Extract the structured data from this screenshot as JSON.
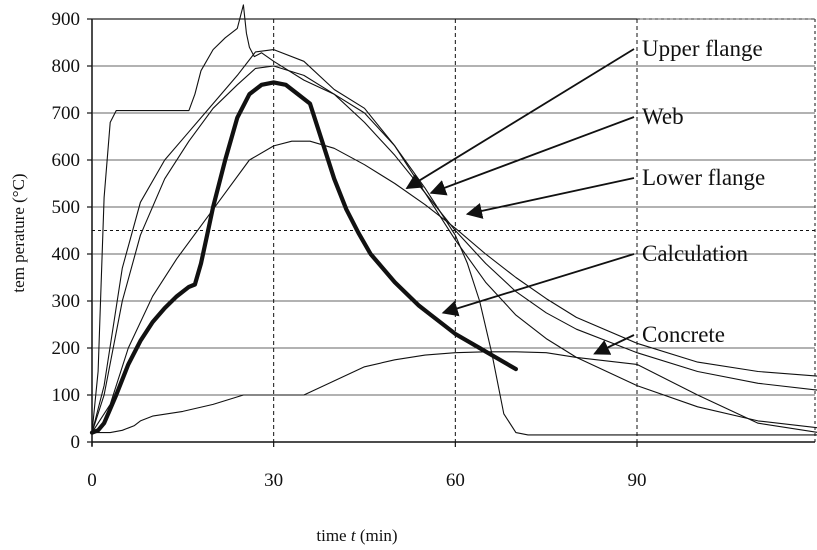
{
  "chart_data": {
    "type": "line",
    "xlabel_prefix": "time ",
    "xlabel_var": "t",
    "xlabel_suffix": " (min)",
    "ylabel": "tem perature (°C)",
    "xlim": [
      0,
      120
    ],
    "ylim": [
      0,
      900
    ],
    "xticks": [
      0,
      30,
      60,
      90
    ],
    "yticks": [
      0,
      100,
      200,
      300,
      400,
      500,
      600,
      700,
      800,
      900
    ],
    "grid": {
      "horizontal": true,
      "vertical_dashed_at": [
        30,
        60,
        90
      ]
    },
    "series": [
      {
        "name": "",
        "style": "thin",
        "x": [
          0,
          1,
          2,
          3,
          4,
          5,
          8,
          12,
          16,
          17,
          18,
          20,
          22,
          24,
          25,
          25.5,
          26,
          26.8,
          28,
          30,
          35,
          40,
          45,
          50,
          55,
          60,
          62,
          64,
          66,
          68,
          70,
          72,
          120
        ],
        "y": [
          20,
          150,
          520,
          680,
          705,
          705,
          705,
          705,
          705,
          740,
          790,
          835,
          860,
          880,
          930,
          870,
          840,
          820,
          828,
          810,
          770,
          740,
          700,
          630,
          540,
          440,
          380,
          300,
          190,
          60,
          20,
          15,
          15
        ]
      },
      {
        "name": "Upper flange",
        "style": "thin",
        "x": [
          0,
          2,
          5,
          8,
          12,
          16,
          20,
          24,
          27,
          30,
          35,
          40,
          45,
          50,
          55,
          60,
          65,
          70,
          75,
          80,
          90,
          100,
          110,
          120
        ],
        "y": [
          20,
          120,
          370,
          510,
          600,
          660,
          720,
          780,
          830,
          835,
          810,
          750,
          710,
          630,
          530,
          430,
          340,
          270,
          220,
          180,
          120,
          75,
          45,
          30
        ]
      },
      {
        "name": "Web",
        "style": "thin",
        "x": [
          0,
          2,
          5,
          8,
          12,
          16,
          20,
          24,
          27,
          30,
          35,
          40,
          45,
          50,
          55,
          60,
          65,
          70,
          75,
          80,
          90,
          100,
          110,
          120
        ],
        "y": [
          20,
          100,
          300,
          440,
          560,
          640,
          710,
          760,
          795,
          800,
          780,
          740,
          680,
          610,
          530,
          450,
          380,
          320,
          275,
          240,
          190,
          150,
          125,
          110
        ]
      },
      {
        "name": "Lower flange",
        "style": "thin",
        "x": [
          0,
          3,
          6,
          10,
          14,
          18,
          22,
          26,
          30,
          33,
          36,
          40,
          45,
          50,
          55,
          60,
          65,
          70,
          75,
          80,
          90,
          100,
          110,
          120
        ],
        "y": [
          20,
          80,
          200,
          310,
          390,
          460,
          530,
          600,
          630,
          640,
          640,
          625,
          590,
          550,
          505,
          455,
          400,
          350,
          305,
          265,
          210,
          170,
          150,
          140
        ]
      },
      {
        "name": "Calculation",
        "style": "thick",
        "x": [
          0,
          1,
          2,
          3,
          4,
          6,
          8,
          10,
          12,
          14,
          16,
          17,
          18,
          19,
          20,
          22,
          24,
          26,
          28,
          30,
          32,
          34,
          36,
          38,
          40,
          42,
          44,
          46,
          48,
          50,
          52,
          54,
          56,
          58,
          60,
          62,
          64,
          66,
          68,
          70
        ],
        "y": [
          20,
          25,
          40,
          70,
          100,
          165,
          215,
          255,
          285,
          310,
          330,
          335,
          380,
          440,
          500,
          600,
          690,
          740,
          760,
          765,
          760,
          740,
          720,
          640,
          560,
          495,
          445,
          400,
          370,
          340,
          315,
          290,
          270,
          250,
          230,
          215,
          200,
          185,
          170,
          155
        ]
      },
      {
        "name": "Concrete",
        "style": "thin",
        "x": [
          0,
          3,
          5,
          7,
          8,
          10,
          15,
          20,
          25,
          30,
          35,
          40,
          45,
          50,
          55,
          60,
          65,
          70,
          75,
          80,
          90,
          100,
          110,
          120
        ],
        "y": [
          20,
          20,
          25,
          35,
          45,
          55,
          65,
          80,
          100,
          100,
          100,
          130,
          160,
          175,
          185,
          190,
          192,
          192,
          190,
          180,
          165,
          100,
          40,
          20
        ]
      }
    ],
    "annotations": [
      {
        "label": "Upper flange",
        "target_x": 52,
        "target_y": 540
      },
      {
        "label": "Web",
        "target_x": 56,
        "target_y": 530
      },
      {
        "label": "Lower flange",
        "target_x": 62,
        "target_y": 485
      },
      {
        "label": "Calculation",
        "target_x": 58,
        "target_y": 275
      },
      {
        "label": "Concrete",
        "target_x": 83,
        "target_y": 188
      }
    ]
  }
}
